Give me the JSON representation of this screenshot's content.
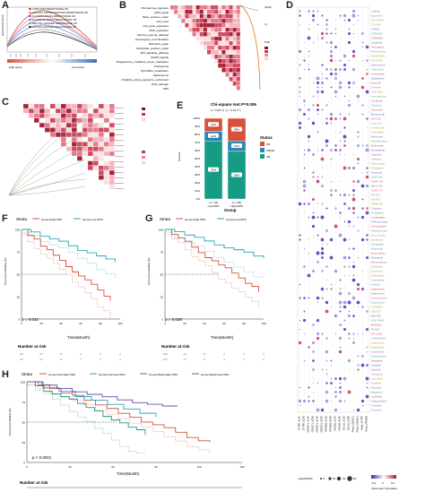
{
  "panels": {
    "a": {
      "label": "A",
      "legend": [
        "CISPLATIN RESISTANCE UP",
        "FOLFOX CONSOLIDATION RESISTANCE UP",
        "FLUOROURACIL RESISTANCE UP",
        "PLATINUM DRUG RESISTANCE UP",
        "RECTAL CANCER RESISTANCE UP",
        "COLON CANCER RESISTANCE UP"
      ],
      "xlabel_left": "High group",
      "xlabel_right": "Low group",
      "ylabel": "Enrichment Score"
    },
    "b": {
      "label": "B",
      "pathways": [
        "IFN-Gamma_signature",
        "APM_signal",
        "Base_excision_repair",
        "Cell_cycle",
        "Cell_cycle_regulators",
        "DNA_replication",
        "Fanconi_anemia_pathway",
        "Homologous_recombination",
        "Mismatch_repair",
        "Nucleotide_excision_repair",
        "p53_signaling_pathway",
        "EGFR_ligands",
        "Progesterone_mediated_oocyte_maturation",
        "Proteasome",
        "Pyrimidine_metabolism",
        "Spliceosome",
        "Oxidative_stress_signature_enrichment",
        "DNA_damage",
        "PRS"
      ],
      "legend_titles": [
        "|Pval|",
        "|r|",
        "Pval"
      ]
    },
    "c": {
      "label": "C"
    },
    "d": {
      "label": "D",
      "legend_title": "Spearman Correlation",
      "legend_ticks": [
        "-0.2",
        "0",
        "0.2"
      ],
      "size_title": "-log10(FDR)",
      "size_ticks": [
        "0",
        "20",
        "40",
        "60"
      ],
      "drugs": [
        "Afatinib",
        "Bosutinib",
        "PD153035",
        "CI-1040",
        "AZ628",
        "AZD6244",
        "AZD6482",
        "Lapatinib",
        "Pazopanib",
        "Refametinib",
        "PD0325901",
        "PLX4720",
        "Selumetinib",
        "Trametinib",
        "Cetuximab",
        "Dabrafenib",
        "Erlotinib",
        "Gefitinib",
        "GW-2580",
        "Vemurafenib",
        "Sorafenib",
        "Sunitinib",
        "Tivozanib",
        "Bortezomib",
        "MG-132",
        "Ixazomib",
        "Carfilzomib",
        "Vorinostat",
        "Belinostat",
        "Panobinostat",
        "Entinostat",
        "Romidepsin",
        "Olaparib",
        "Veliparib",
        "Talazoparib",
        "Rucaparib",
        "Niraparib",
        "AZD7762",
        "CHIR-124",
        "MK-1775",
        "AZD1775",
        "VE-821",
        "VE-822",
        "AZD6738",
        "Cisplatin",
        "Oxaliplatin",
        "Carboplatin",
        "5-Fluorouracil",
        "Gemcitabine",
        "Methotrexate",
        "Pemetrexed",
        "Irinotecan",
        "Topotecan",
        "Etoposide",
        "Doxorubicin",
        "Epirubicin",
        "Mitoxantrone",
        "Paclitaxel",
        "Docetaxel",
        "Vinblastine",
        "Vinorelbine",
        "Eribulin",
        "Ixabepilone",
        "Everolimus",
        "Temsirolimus",
        "Rapamycin",
        "AZD8055",
        "OSI-027",
        "BEZ235",
        "GDC-0941",
        "BKM120",
        "PI-103",
        "MK-2206",
        "GSK690693",
        "Ipatasertib",
        "Afuresertib",
        "Uprosertib",
        "Capivasertib",
        "Dasatinib",
        "Imatinib",
        "Nilotinib",
        "Ponatinib",
        "Crizotinib",
        "Ceritinib",
        "Alectinib",
        "Brigatinib",
        "Lorlatinib",
        "Cabozantinib",
        "Foretinib",
        "Tepotinib"
      ],
      "xaxis": [
        "CTRP_AUC",
        "CTRP_IC50",
        "GDSC1_AUC",
        "GDSC1_IC50",
        "GDSC2_AUC",
        "GDSC2_IC50",
        "PRISM_AUC",
        "PRISM_IC50",
        "NCI60_AUC",
        "NCI60_IC50",
        "CCLE_AUC",
        "CCLE_IC50",
        "Pred_GDSC1",
        "Pred_GDSC2",
        "Pred_CTRP",
        "Pred_PRISM"
      ]
    },
    "e": {
      "label": "E",
      "title": "Chi-square test P=0.006",
      "subtitle": "p < 0.05 (*) ; p < 0.01 (**)",
      "status_title": "Status",
      "status": [
        "PD",
        "PR/SD",
        "CR"
      ],
      "xlabel": "Group",
      "ylabel": "Percent",
      "groups": [
        "Low-PRS",
        "High-PRS"
      ],
      "ns": [
        "(n = 61)",
        "(n = 60)"
      ],
      "bars": [
        {
          "PD": 16,
          "PRSD": 12,
          "CR": 72
        },
        {
          "PD": 28,
          "PRSD": 13,
          "CR": 59
        }
      ],
      "pct_labels": [
        [
          "16%",
          "12%",
          "72%"
        ],
        [
          "28%",
          "13%",
          "59%"
        ]
      ],
      "yticks": [
        "0%",
        "10%",
        "20%",
        "30%",
        "40%",
        "50%",
        "60%",
        "70%",
        "80%",
        "90%",
        "100%"
      ]
    },
    "f": {
      "label": "F",
      "strata_title": "Strata",
      "legend": [
        "Group=High PRS",
        "Group=Low PRS"
      ],
      "pval": "p = 0.032",
      "xlabel": "Time(Month)",
      "ylabel": "Survival probability (%)",
      "xticks": [
        "0",
        "20",
        "40",
        "60",
        "80",
        "100"
      ],
      "yticks": [
        "0",
        "25",
        "50",
        "75",
        "100"
      ],
      "risk_title": "Number at risk",
      "risk_rows": [
        [
          "85",
          "47",
          "17",
          "6",
          "3",
          "0"
        ],
        [
          "43",
          "26",
          "12",
          "7",
          "3",
          "0"
        ]
      ]
    },
    "g": {
      "label": "G",
      "strata_title": "Strata",
      "legend": [
        "Group=High PRS",
        "Group=Low PRS"
      ],
      "pval": "p = 0.028",
      "xlabel": "Time(Month)",
      "ylabel": "Survival probability (%)",
      "xticks": [
        "0",
        "20",
        "40",
        "60",
        "80",
        "100"
      ],
      "yticks": [
        "0",
        "25",
        "50",
        "75",
        "100"
      ],
      "risk_title": "Number at risk",
      "risk_rows": [
        [
          "109",
          "53",
          "17",
          "5",
          "3",
          "0"
        ],
        [
          "122",
          "74",
          "17",
          "4",
          "1",
          "0"
        ]
      ]
    },
    "h": {
      "label": "H",
      "strata_title": "Strata",
      "legend": [
        "Group=Left=High PRS",
        "Group=Left=Low PRS",
        "Group=Right=High PRS",
        "Group=Right=Low PRS"
      ],
      "pval": "p < 0.0001",
      "xlabel": "Time(Month)",
      "ylabel": "Survival probability (%)",
      "xticks": [
        "0",
        "30",
        "60",
        "90",
        "120",
        "150"
      ],
      "yticks": [
        "0",
        "25",
        "50",
        "75",
        "100"
      ],
      "risk_title": "Number at risk"
    }
  },
  "colors": {
    "red": "#d6533a",
    "teal": "#2aa6b8",
    "green": "#1f9a82",
    "purple": "#6a4db0",
    "pink": "#e88fa0",
    "pd": "#d6533a",
    "prsd": "#2b85b8",
    "cr": "#169c84"
  }
}
